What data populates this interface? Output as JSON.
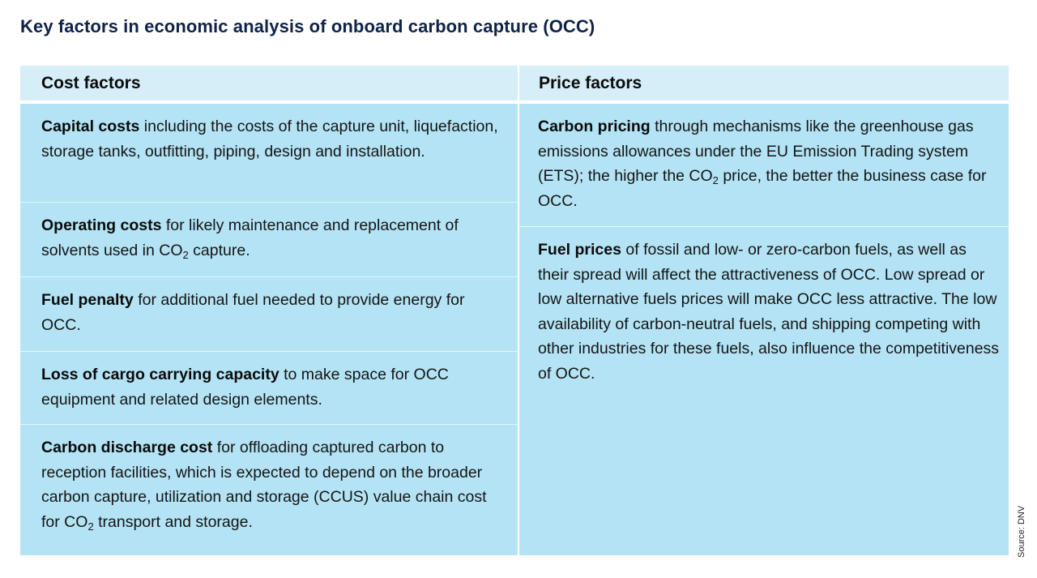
{
  "title": "Key factors in economic analysis of onboard carbon capture (OCC)",
  "columns": {
    "cost": {
      "header": "Cost factors",
      "items": [
        {
          "bold": "Capital costs",
          "rest": " including the costs of the capture unit, liquefaction, storage tanks, outfitting, piping, design and installation."
        },
        {
          "bold": "Operating costs",
          "rest": " for likely maintenance and replacement of solvents used in CO",
          "sub": "2",
          "tail": " capture."
        },
        {
          "bold": "Fuel penalty",
          "rest": " for additional fuel needed to provide energy for OCC."
        },
        {
          "bold": "Loss of cargo carrying capacity",
          "rest": " to make space for OCC equipment and related design elements."
        },
        {
          "bold": "Carbon discharge cost",
          "rest": " for offloading captured carbon to reception facilities, which is expected to depend on the broader carbon capture, utilization and storage (CCUS) value chain cost for CO",
          "sub": "2",
          "tail": " transport and storage."
        }
      ]
    },
    "price": {
      "header": "Price factors",
      "items": [
        {
          "bold": "Carbon pricing",
          "rest": " through mechanisms like the greenhouse gas emissions allowances under the EU Emission Trading system (ETS); the higher the CO",
          "sub": "2",
          "tail": " price, the better the business case for OCC."
        },
        {
          "bold": "Fuel prices",
          "rest": " of fossil and low- or zero-carbon fuels, as well as their spread will affect the attractiveness of OCC. Low spread or low alternative fuels prices will make OCC less attractive. The low availability of carbon-neutral fuels, and shipping competing with other industries for these fuels, also influence the competitiveness of OCC."
        }
      ]
    }
  },
  "source": "Source: DNV",
  "colors": {
    "title": "#0f2347",
    "header_bg": "#d6eef8",
    "body_bg": "#b3e3f4"
  }
}
